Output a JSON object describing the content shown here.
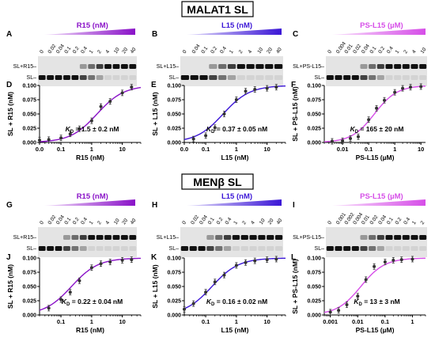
{
  "sections": [
    {
      "title": "MALAT1 SL"
    },
    {
      "title": "MENβ SL"
    }
  ],
  "gel_panels": [
    {
      "letter": "A",
      "header": "R15 (nM)",
      "color": "#8a12c8",
      "light": "#f1dcfa",
      "lanes": [
        "0",
        "0.02",
        "0.04",
        "0.1",
        "0.2",
        "0.4",
        "1",
        "2",
        "4",
        "10",
        "20",
        "40"
      ],
      "bands": [
        "SL+R15–",
        "SL–"
      ],
      "shift_from": 6
    },
    {
      "letter": "B",
      "header": "L15 (nM)",
      "color": "#3b16d6",
      "light": "#e2dcfb",
      "lanes": [
        "0",
        "0.04",
        "0.1",
        "0.2",
        "0.4",
        "1",
        "2",
        "4",
        "10",
        "20",
        "40"
      ],
      "bands": [
        "SL+L15–",
        "SL–"
      ],
      "shift_from": 4
    },
    {
      "letter": "C",
      "header": "PS-L15 (µM)",
      "color": "#d64ee8",
      "light": "#f9e0fc",
      "lanes": [
        "0",
        "0.004",
        "0.01",
        "0.02",
        "0.04",
        "0.1",
        "0.2",
        "0.4",
        "1",
        "2",
        "4",
        "10"
      ],
      "bands": [
        "SL+PS-L15–",
        "SL–"
      ],
      "shift_from": 5
    },
    {
      "letter": "G",
      "header": "R15 (nM)",
      "color": "#8a12c8",
      "light": "#f1dcfa",
      "lanes": [
        "0",
        "0.02",
        "0.04",
        "0.1",
        "0.2",
        "0.4",
        "1",
        "2",
        "4",
        "10",
        "20",
        "40"
      ],
      "bands": [
        "SL+R15–",
        "SL–"
      ],
      "shift_from": 4
    },
    {
      "letter": "H",
      "header": "L15 (nM)",
      "color": "#3b16d6",
      "light": "#e2dcfb",
      "lanes": [
        "0",
        "0.02",
        "0.04",
        "0.1",
        "0.2",
        "0.4",
        "1",
        "2",
        "4",
        "10",
        "20",
        "40"
      ],
      "bands": [
        "SL+L15–",
        "SL–"
      ],
      "shift_from": 4
    },
    {
      "letter": "I",
      "header": "PS-L15 (µM)",
      "color": "#d64ee8",
      "light": "#f9e0fc",
      "lanes": [
        "0",
        "0.001",
        "0.002",
        "0.004",
        "0.01",
        "0.02",
        "0.04",
        "0.1",
        "0.2",
        "0.4",
        "1",
        "2"
      ],
      "bands": [
        "SL+PS-L15–",
        "SL–"
      ],
      "shift_from": 5
    }
  ],
  "chart_data": [
    {
      "letter": "D",
      "type": "scatter",
      "curve": "binding",
      "color": "#8a12c8",
      "xlabel": "R15 (nM)",
      "ylabel": "SL + R15 (nM)",
      "log_x": true,
      "xlim": [
        0.02,
        40
      ],
      "ylim": [
        0,
        0.1
      ],
      "xticks": [
        "0.0",
        "0.1",
        "1",
        "10"
      ],
      "xtick_values": [
        0.02,
        0.1,
        1,
        10
      ],
      "yticks": [
        "0.000",
        "0.025",
        "0.050",
        "0.075",
        "0.100"
      ],
      "ytick_values": [
        0,
        0.025,
        0.05,
        0.075,
        0.1
      ],
      "kd_label": "K",
      "kd_sub": "D",
      "kd_value": " = 1.5 ± 0.2 nM",
      "kd": 1.5,
      "ymax": 0.1,
      "x": [
        0.02,
        0.04,
        0.1,
        0.2,
        0.4,
        1,
        2,
        4,
        10,
        20
      ],
      "y": [
        0.004,
        0.005,
        0.008,
        0.015,
        0.024,
        0.038,
        0.063,
        0.072,
        0.087,
        0.097
      ]
    },
    {
      "letter": "E",
      "type": "scatter",
      "curve": "binding",
      "color": "#3b16d6",
      "xlabel": "L15 (nM)",
      "ylabel": "SL + L15 (nM)",
      "log_x": true,
      "xlim": [
        0.02,
        40
      ],
      "ylim": [
        0,
        0.1
      ],
      "xticks": [
        "0.0",
        "0.1",
        "1",
        "10"
      ],
      "xtick_values": [
        0.02,
        0.1,
        1,
        10
      ],
      "yticks": [
        "0.000",
        "0.025",
        "0.050",
        "0.075",
        "0.100"
      ],
      "ytick_values": [
        0,
        0.025,
        0.05,
        0.075,
        0.1
      ],
      "kd_label": "K",
      "kd_sub": "D",
      "kd_value": " = 0.37 ± 0.05 nM",
      "kd": 0.37,
      "ymax": 0.1,
      "x": [
        0.04,
        0.1,
        0.2,
        0.4,
        1,
        2,
        4,
        10,
        20
      ],
      "y": [
        0.006,
        0.012,
        0.026,
        0.05,
        0.075,
        0.09,
        0.093,
        0.095,
        0.097
      ]
    },
    {
      "letter": "F",
      "type": "scatter",
      "curve": "binding",
      "color": "#d64ee8",
      "xlabel": "PS-L15 (µM)",
      "ylabel": "SL + PS-L15 (nM)",
      "log_x": true,
      "xlim": [
        0.002,
        15
      ],
      "ylim": [
        0,
        0.1
      ],
      "xticks": [
        "0.01",
        "0.1",
        "1",
        "10"
      ],
      "xtick_values": [
        0.01,
        0.1,
        1,
        10
      ],
      "yticks": [
        "0.000",
        "0.025",
        "0.050",
        "0.075",
        "0.100"
      ],
      "ytick_values": [
        0,
        0.025,
        0.05,
        0.075,
        0.1
      ],
      "kd_label": "K",
      "kd_sub": "D",
      "kd_value": " = 165 ± 20 nM",
      "kd": 0.165,
      "ymax": 0.1,
      "x": [
        0.004,
        0.01,
        0.02,
        0.04,
        0.1,
        0.2,
        0.4,
        1,
        2,
        4,
        10
      ],
      "y": [
        0.002,
        0.003,
        0.007,
        0.01,
        0.04,
        0.06,
        0.074,
        0.088,
        0.095,
        0.097,
        0.098
      ]
    },
    {
      "letter": "J",
      "type": "scatter",
      "curve": "binding",
      "color": "#8a12c8",
      "xlabel": "R15 (nM)",
      "ylabel": "SL + R15 (nM)",
      "log_x": true,
      "xlim": [
        0.02,
        40
      ],
      "ylim": [
        0,
        0.1
      ],
      "xticks": [
        "0.1",
        "1",
        "10"
      ],
      "xtick_values": [
        0.1,
        1,
        10
      ],
      "yticks": [
        "0.000",
        "0.025",
        "0.050",
        "0.075",
        "0.100"
      ],
      "ytick_values": [
        0,
        0.025,
        0.05,
        0.075,
        0.1
      ],
      "kd_label": "K",
      "kd_sub": "D",
      "kd_value": " = 0.22 ± 0.04 nM",
      "kd": 0.22,
      "ymax": 0.1,
      "x": [
        0.04,
        0.1,
        0.2,
        0.4,
        1,
        2,
        4,
        10,
        20
      ],
      "y": [
        0.012,
        0.027,
        0.04,
        0.06,
        0.083,
        0.09,
        0.093,
        0.096,
        0.097
      ]
    },
    {
      "letter": "K",
      "type": "scatter",
      "curve": "binding",
      "color": "#3b16d6",
      "xlabel": "L15 (nM)",
      "ylabel": "SL + L15 (nM)",
      "log_x": true,
      "xlim": [
        0.02,
        40
      ],
      "ylim": [
        0,
        0.1
      ],
      "xticks": [
        "0.1",
        "1",
        "10"
      ],
      "xtick_values": [
        0.1,
        1,
        10
      ],
      "yticks": [
        "0.000",
        "0.025",
        "0.050",
        "0.075",
        "0.100"
      ],
      "ytick_values": [
        0,
        0.025,
        0.05,
        0.075,
        0.1
      ],
      "kd_label": "K",
      "kd_sub": "D",
      "kd_value": " = 0.16 ± 0.02 nM",
      "kd": 0.16,
      "ymax": 0.1,
      "x": [
        0.02,
        0.04,
        0.1,
        0.2,
        0.4,
        1,
        2,
        4,
        10,
        20
      ],
      "y": [
        0.01,
        0.02,
        0.04,
        0.058,
        0.07,
        0.087,
        0.092,
        0.095,
        0.097,
        0.098
      ]
    },
    {
      "letter": "L",
      "type": "scatter",
      "curve": "binding",
      "color": "#d64ee8",
      "xlabel": "PS-L15 (µM)",
      "ylabel": "SL + PS-L15 (nM)",
      "log_x": true,
      "xlim": [
        0.0006,
        3
      ],
      "ylim": [
        0,
        0.1
      ],
      "xticks": [
        "0.001",
        "0.01",
        "0.1",
        "1"
      ],
      "xtick_values": [
        0.001,
        0.01,
        0.1,
        1
      ],
      "yticks": [
        "0.000",
        "0.025",
        "0.050",
        "0.075",
        "0.100"
      ],
      "ytick_values": [
        0,
        0.025,
        0.05,
        0.075,
        0.1
      ],
      "kd_label": "K",
      "kd_sub": "D",
      "kd_value": " = 13 ± 3 nM",
      "kd": 0.013,
      "ymax": 0.1,
      "x": [
        0.001,
        0.002,
        0.004,
        0.01,
        0.02,
        0.04,
        0.1,
        0.2,
        0.4,
        1
      ],
      "y": [
        0.005,
        0.008,
        0.018,
        0.033,
        0.062,
        0.085,
        0.093,
        0.096,
        0.097,
        0.098
      ]
    }
  ]
}
